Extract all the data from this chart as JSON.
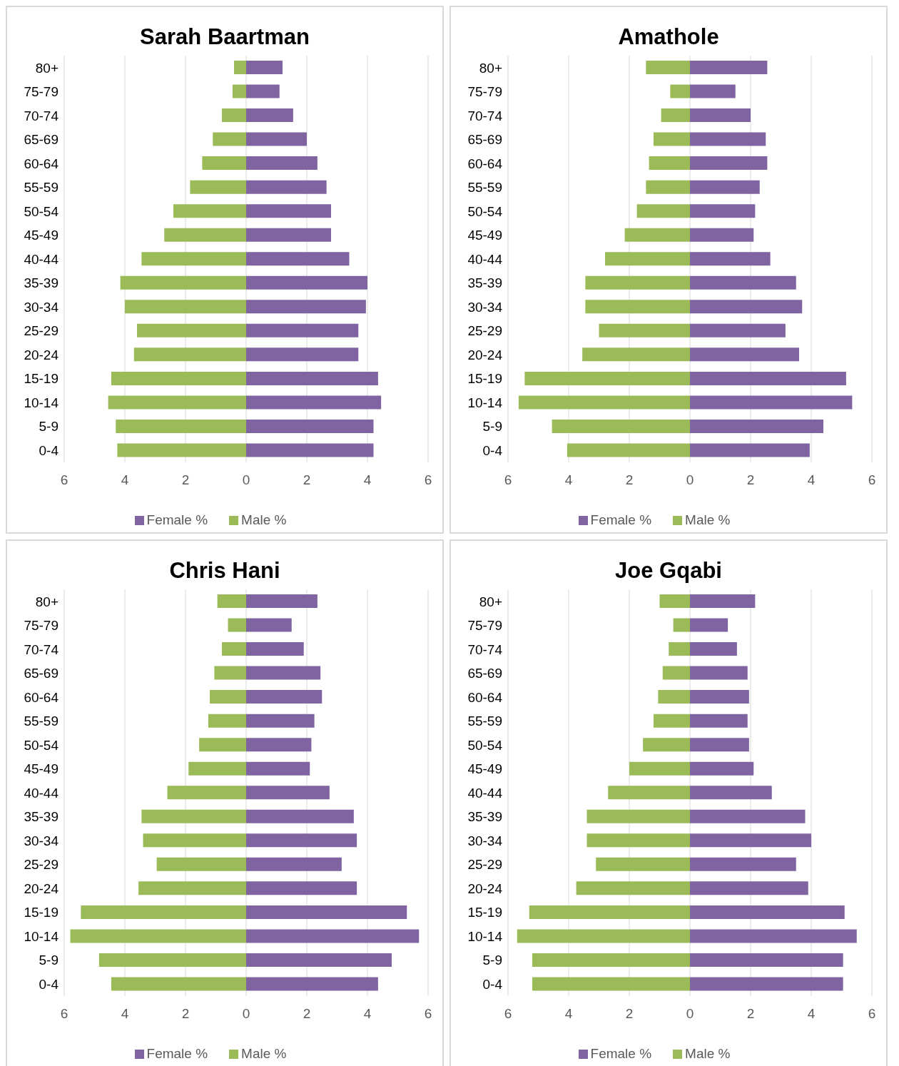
{
  "chart_data": [
    {
      "type": "bar",
      "title": "Sarah Baartman",
      "orientation": "horizontal",
      "stacked": true,
      "grid": "x",
      "legend": "bottom",
      "xlim": [
        -6,
        6
      ],
      "xticks": [
        {
          "value": -6,
          "label": "6"
        },
        {
          "value": -4,
          "label": "4"
        },
        {
          "value": -2,
          "label": "2"
        },
        0,
        2,
        4,
        6
      ],
      "categories": [
        "80+",
        "75-79",
        "70-74",
        "65-69",
        "60-64",
        "55-59",
        "50-54",
        "45-49",
        "40-44",
        "35-39",
        "30-34",
        "25-29",
        "20-24",
        "15-19",
        "10-14",
        "5-9",
        "0-4"
      ],
      "series": [
        {
          "name": "Male %",
          "color": "#9bbb59",
          "values": [
            -0.4,
            -0.45,
            -0.8,
            -1.1,
            -1.45,
            -1.85,
            -2.4,
            -2.7,
            -3.45,
            -4.15,
            -4.0,
            -3.6,
            -3.7,
            -4.45,
            -4.55,
            -4.3,
            -4.25
          ]
        },
        {
          "name": "Female %",
          "color": "#8064a2",
          "values": [
            1.2,
            1.1,
            1.55,
            2.0,
            2.35,
            2.65,
            2.8,
            2.8,
            3.4,
            4.0,
            3.95,
            3.7,
            3.7,
            4.35,
            4.45,
            4.2,
            4.2
          ]
        }
      ]
    },
    {
      "type": "bar",
      "title": "Amathole",
      "orientation": "horizontal",
      "stacked": true,
      "grid": "x",
      "legend": "bottom",
      "xlim": [
        -6,
        6
      ],
      "xticks": [
        {
          "value": -6,
          "label": "6"
        },
        {
          "value": -4,
          "label": "4"
        },
        {
          "value": -2,
          "label": "2"
        },
        0,
        2,
        4,
        6
      ],
      "categories": [
        "80+",
        "75-79",
        "70-74",
        "65-69",
        "60-64",
        "55-59",
        "50-54",
        "45-49",
        "40-44",
        "35-39",
        "30-34",
        "25-29",
        "20-24",
        "15-19",
        "10-14",
        "5-9",
        "0-4"
      ],
      "series": [
        {
          "name": "Male %",
          "color": "#9bbb59",
          "values": [
            -1.45,
            -0.65,
            -0.95,
            -1.2,
            -1.35,
            -1.45,
            -1.75,
            -2.15,
            -2.8,
            -3.45,
            -3.45,
            -3.0,
            -3.55,
            -5.45,
            -5.65,
            -4.55,
            -4.05
          ]
        },
        {
          "name": "Female %",
          "color": "#8064a2",
          "values": [
            2.55,
            1.5,
            2.0,
            2.5,
            2.55,
            2.3,
            2.15,
            2.1,
            2.65,
            3.5,
            3.7,
            3.15,
            3.6,
            5.15,
            5.35,
            4.4,
            3.95
          ]
        }
      ]
    },
    {
      "type": "bar",
      "title": "Chris Hani",
      "orientation": "horizontal",
      "stacked": true,
      "grid": "x",
      "legend": "bottom",
      "xlim": [
        -6,
        6
      ],
      "xticks": [
        {
          "value": -6,
          "label": "6"
        },
        {
          "value": -4,
          "label": "4"
        },
        {
          "value": -2,
          "label": "2"
        },
        0,
        2,
        4,
        6
      ],
      "categories": [
        "80+",
        "75-79",
        "70-74",
        "65-69",
        "60-64",
        "55-59",
        "50-54",
        "45-49",
        "40-44",
        "35-39",
        "30-34",
        "25-29",
        "20-24",
        "15-19",
        "10-14",
        "5-9",
        "0-4"
      ],
      "series": [
        {
          "name": "Male %",
          "color": "#9bbb59",
          "values": [
            -0.95,
            -0.6,
            -0.8,
            -1.05,
            -1.2,
            -1.25,
            -1.55,
            -1.9,
            -2.6,
            -3.45,
            -3.4,
            -2.95,
            -3.55,
            -5.45,
            -5.8,
            -4.85,
            -4.45
          ]
        },
        {
          "name": "Female %",
          "color": "#8064a2",
          "values": [
            2.35,
            1.5,
            1.9,
            2.45,
            2.5,
            2.25,
            2.15,
            2.1,
            2.75,
            3.55,
            3.65,
            3.15,
            3.65,
            5.3,
            5.7,
            4.8,
            4.35
          ]
        }
      ]
    },
    {
      "type": "bar",
      "title": "Joe Gqabi",
      "orientation": "horizontal",
      "stacked": true,
      "grid": "x",
      "legend": "bottom",
      "xlim": [
        -6,
        6
      ],
      "xticks": [
        {
          "value": -6,
          "label": "6"
        },
        {
          "value": -4,
          "label": "4"
        },
        {
          "value": -2,
          "label": "2"
        },
        0,
        2,
        4,
        6
      ],
      "categories": [
        "80+",
        "75-79",
        "70-74",
        "65-69",
        "60-64",
        "55-59",
        "50-54",
        "45-49",
        "40-44",
        "35-39",
        "30-34",
        "25-29",
        "20-24",
        "15-19",
        "10-14",
        "5-9",
        "0-4"
      ],
      "series": [
        {
          "name": "Male %",
          "color": "#9bbb59",
          "values": [
            -1.0,
            -0.55,
            -0.7,
            -0.9,
            -1.05,
            -1.2,
            -1.55,
            -2.0,
            -2.7,
            -3.4,
            -3.4,
            -3.1,
            -3.75,
            -5.3,
            -5.7,
            -5.2,
            -5.2
          ]
        },
        {
          "name": "Female %",
          "color": "#8064a2",
          "values": [
            2.15,
            1.25,
            1.55,
            1.9,
            1.95,
            1.9,
            1.95,
            2.1,
            2.7,
            3.8,
            4.0,
            3.5,
            3.9,
            5.1,
            5.5,
            5.05,
            5.05
          ]
        }
      ]
    }
  ]
}
